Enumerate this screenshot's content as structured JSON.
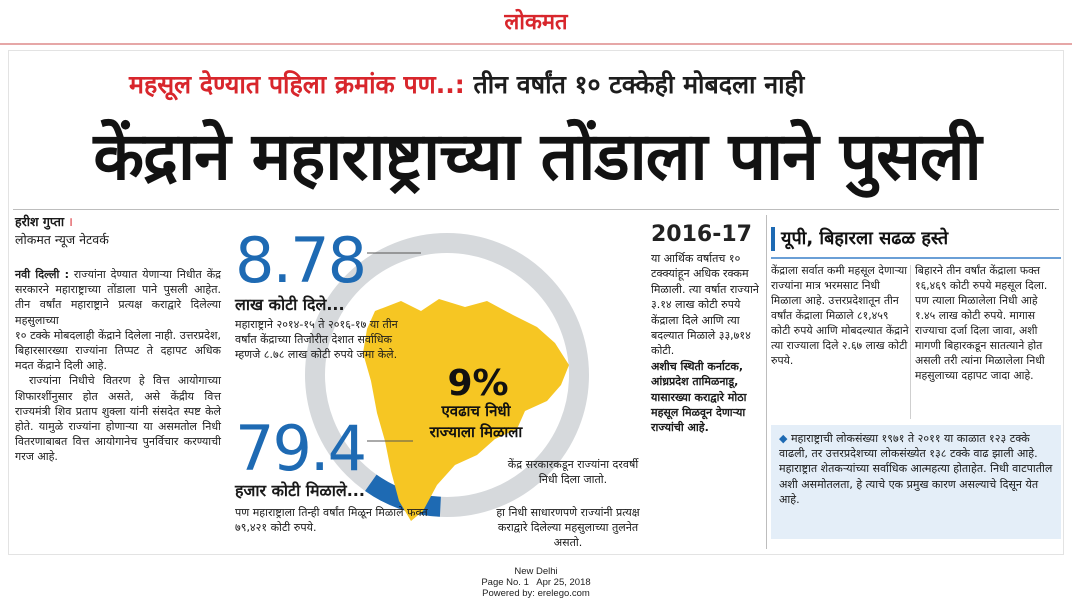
{
  "masthead": {
    "logo": "लोकमत"
  },
  "kicker": {
    "red": "महसूल देण्यात पहिला क्रमांक पण..: ",
    "black": "तीन वर्षांत १० टक्केही मोबदला नाही"
  },
  "headline": "केंद्राने महाराष्ट्राच्या तोंडाला पाने पुसली",
  "byline": {
    "name": "हरीश गुप्ता",
    "sep": " ।",
    "org": "लोकमत न्यूज नेटवर्क"
  },
  "left_col": {
    "dateline": "नवी दिल्ली :",
    "p1": " राज्यांना देण्यात येणाऱ्या निधीत केंद्र सरकारने महाराष्ट्राच्या तोंडाला पाने पुसली आहेत. तीन वर्षांत महाराष्ट्राने प्रत्यक्ष कराद्वारे दिलेल्या महसुलाच्या",
    "p2": "१० टक्के मोबदलाही केंद्राने दिलेला नाही. उत्तरप्रदेश, बिहारसारख्या राज्यांना तिप्पट ते दहापट अधिक मदत केंद्राने दिली आहे.",
    "p3": "राज्यांना निधीचे वितरण हे वित्त आयोगाच्या शिफारशींनुसार होत असते, असे केंद्रीय वित्त राज्यमंत्री शिव प्रताप शुक्ला यांनी संसदेत स्पष्ट केले होते. यामुळे राज्यांना होणाऱ्या या असमतोल निधी वितरणाबाबत वित्त आयोगानेच पुनर्विचार करण्याची गरज आहे."
  },
  "graphic": {
    "num1": "8.78",
    "unit1": "लाख कोटी दिले...",
    "note1": "महाराष्ट्राने २०१४-१५ ते २०१६-१७ या तीन वर्षांत केंद्राच्या तिजोरीत देशात सर्वाधिक म्हणजे ८.७८ लाख कोटी रुपये जमा केले.",
    "num2": "79.4",
    "unit2": "हजार कोटी मिळाले...",
    "note2": "पण महाराष्ट्राला तिन्ही वर्षांत मिळून मिळाले फक्त ७९,४२१ कोटी रुपये.",
    "pct": "9%",
    "pct_caption_1": "एवढाच निधी",
    "pct_caption_2": "राज्याला मिळाला",
    "note3": "केंद्र सरकारकडून राज्यांना दरवर्षी निधी दिला जातो.",
    "note4": "हा निधी साधारणपणे राज्यांनी प्रत्यक्ष कराद्वारे दिलेल्या महसुलाच्या तुलनेत असतो.",
    "share_fraction": 0.09,
    "colors": {
      "ring": "#d6d9dc",
      "arc": "#1e6ab3",
      "state": "#f6c623"
    }
  },
  "mid_col": {
    "year": "2016-17",
    "text": "या आर्थिक वर्षातच १० टक्क्यांहून अधिक रक्कम मिळाली. त्या वर्षात राज्याने ३.१४ लाख कोटी रुपये केंद्राला दिले आणि त्या बदल्यात मिळाले ३३,७१४ कोटी.",
    "bold": "अशीच स्थिती कर्नाटक, आंध्रप्रदेश तामिळनाडू, यासारख्या कराद्वारे मोठा महसूल मिळवून देणाऱ्या राज्यांची आहे."
  },
  "right": {
    "head": "यूपी, बिहारला सढळ हस्ते",
    "col1": "केंद्राला सर्वात कमी महसूल देणाऱ्या राज्यांना मात्र भरमसाट निधी मिळाला आहे. उत्तरप्रदेशातून तीन वर्षांत केंद्राला मिळाले ८१,४५९ कोटी रुपये आणि मोबदल्यात केंद्राने त्या राज्याला दिले २.६७ लाख कोटी रुपये.",
    "col2": "बिहारने तीन वर्षांत केंद्राला फक्त १६,४६९ कोटी रुपये महसूल दिला. पण त्याला मिळालेला निधी आहे १.४५ लाख कोटी रुपये. मागास राज्याचा दर्जा दिला जावा, अशी मागणी बिहारकडून सातत्याने होत असली तरी त्यांना मिळालेला निधी महसुलाच्या दहापट जादा आहे.",
    "bullet": "◆",
    "box": " महाराष्ट्राची लोकसंख्या १९७१ ते २०११ या काळात १२३ टक्के वाढली, तर उत्तरप्रदेशच्या लोकसंख्येत १३८ टक्के वाढ झाली आहे. महाराष्ट्रात शेतकऱ्यांच्या सर्वाधिक आत्महत्या होताहेत. निधी वाटपातील अशी असमोतलता, हे त्याचे एक प्रमुख कारण असल्याचे दिसून येत आहे."
  },
  "footer": {
    "line1": "New Delhi",
    "line2": "Page No. 1   Apr 25, 2018",
    "line3": "Powered by: erelego.com"
  }
}
